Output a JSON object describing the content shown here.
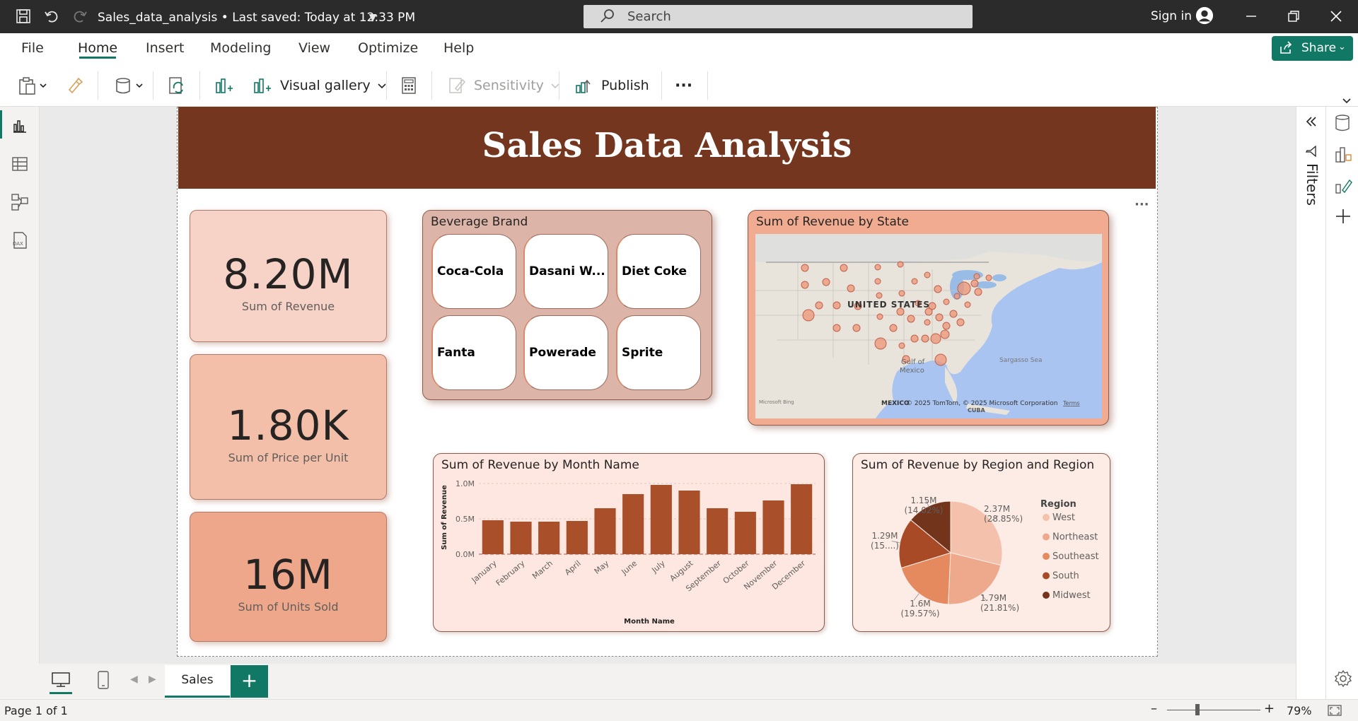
{
  "titlebar": {
    "file_title": "Sales_data_analysis • Last saved: Today at 12:33 PM",
    "search_placeholder": "Search",
    "signin_label": "Sign in"
  },
  "menu": {
    "items": [
      "File",
      "Home",
      "Insert",
      "Modeling",
      "View",
      "Optimize",
      "Help"
    ],
    "active": "Home",
    "share_label": "Share"
  },
  "ribbon": {
    "visual_gallery_label": "Visual gallery",
    "sensitivity_label": "Sensitivity",
    "publish_label": "Publish",
    "more_label": "···"
  },
  "report": {
    "title": "Sales Data Analysis",
    "kpis": [
      {
        "value": "8.20M",
        "label": "Sum of Revenue",
        "color": "#f7d3c7"
      },
      {
        "value": "1.80K",
        "label": "Sum of Price per Unit",
        "color": "#f3bfa8"
      },
      {
        "value": "16M",
        "label": "Sum of Units Sold",
        "color": "#eea78b"
      }
    ],
    "slicer": {
      "title": "Beverage Brand",
      "items": [
        "Coca-Cola",
        "Dasani W...",
        "Diet Coke",
        "Fanta",
        "Powerade",
        "Sprite"
      ]
    },
    "map": {
      "title": "Sum of Revenue by State",
      "country_label": "UNITED STATES",
      "gulf_label": "Gulf of\nMexico",
      "mexico_label": "MEXICO",
      "sargasso_label": "Sargasso Sea",
      "cuba_label": "CUBA",
      "attribution": "© 2025 TomTom, © 2025 Microsoft Corporation",
      "terms": "Terms",
      "bing": "Microsoft Bing"
    },
    "more_options": "···"
  },
  "chart_data": [
    {
      "type": "bar",
      "title": "Sum of Revenue by Month Name",
      "xlabel": "Month Name",
      "ylabel": "Sum of Revenue",
      "categories": [
        "January",
        "February",
        "March",
        "April",
        "May",
        "June",
        "July",
        "August",
        "September",
        "October",
        "November",
        "December"
      ],
      "values": [
        0.48,
        0.46,
        0.46,
        0.47,
        0.65,
        0.85,
        0.98,
        0.9,
        0.65,
        0.6,
        0.76,
        0.99
      ],
      "yticks": [
        "0.0M",
        "0.5M",
        "1.0M"
      ],
      "ylim": [
        0,
        1.0
      ],
      "bar_color": "#a9502a"
    },
    {
      "type": "pie",
      "title": "Sum of Revenue by Region and Region",
      "legend_title": "Region",
      "legend_position": "right",
      "slices": [
        {
          "name": "West",
          "value": 2.37,
          "label": "2.37M",
          "pct": "(28.85%)",
          "color": "#f4c1ad"
        },
        {
          "name": "Northeast",
          "value": 1.79,
          "label": "1.79M",
          "pct": "(21.81%)",
          "color": "#eea98d"
        },
        {
          "name": "Southeast",
          "value": 1.6,
          "label": "1.6M",
          "pct": "(19.57%)",
          "color": "#e5895f"
        },
        {
          "name": "South",
          "value": 1.29,
          "label": "1.29M",
          "pct": "(15....)",
          "color": "#a74a25"
        },
        {
          "name": "Midwest",
          "value": 1.15,
          "label": "1.15M",
          "pct": "(14.02%)",
          "color": "#73341c"
        }
      ]
    }
  ],
  "tabs": {
    "page_tab": "Sales",
    "add_tab": "+"
  },
  "filters_label": "Filters",
  "status": {
    "page": "Page 1 of 1",
    "zoom": "79%"
  }
}
